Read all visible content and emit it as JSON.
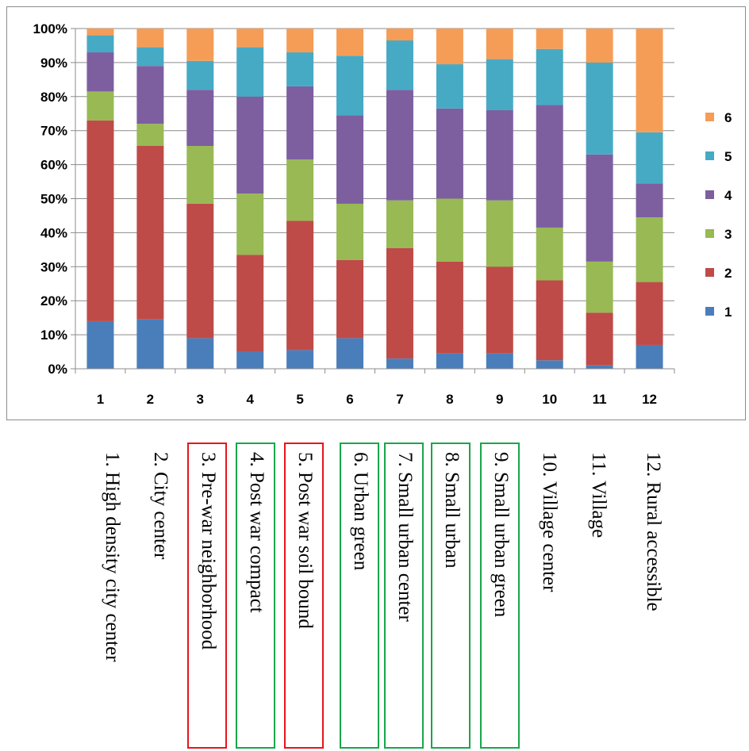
{
  "chart_data": {
    "type": "bar",
    "stacked": true,
    "categories": [
      "1",
      "2",
      "3",
      "4",
      "5",
      "6",
      "7",
      "8",
      "9",
      "10",
      "11",
      "12"
    ],
    "series": [
      {
        "name": "1",
        "color": "#4a7ebb",
        "values": [
          14,
          14.5,
          9,
          5,
          5.5,
          9,
          3,
          4.5,
          4.5,
          2.5,
          1,
          7
        ]
      },
      {
        "name": "2",
        "color": "#be4b48",
        "values": [
          59,
          51,
          39.5,
          28.5,
          38,
          23,
          32.5,
          27,
          25.5,
          23.5,
          15.5,
          18.5
        ]
      },
      {
        "name": "3",
        "color": "#98b954",
        "values": [
          8.5,
          6.5,
          17,
          18,
          18,
          16.5,
          14,
          18.5,
          19.5,
          15.5,
          15,
          19
        ]
      },
      {
        "name": "4",
        "color": "#7d5fa0",
        "values": [
          11.5,
          17,
          16.5,
          28.5,
          21.5,
          26,
          32.5,
          26.5,
          26.5,
          36,
          31.5,
          10
        ]
      },
      {
        "name": "5",
        "color": "#46aac5",
        "values": [
          5,
          5.5,
          8.5,
          14.5,
          10,
          17.5,
          14.5,
          13,
          15,
          16.5,
          27,
          15
        ]
      },
      {
        "name": "6",
        "color": "#f59d56",
        "values": [
          2,
          5.5,
          9.5,
          5.5,
          7,
          8,
          3.5,
          10.5,
          9,
          6,
          10,
          30.5
        ]
      }
    ],
    "yticks": [
      "0%",
      "10%",
      "20%",
      "30%",
      "40%",
      "50%",
      "60%",
      "70%",
      "80%",
      "90%",
      "100%"
    ],
    "ylim": [
      0,
      100
    ],
    "grid": true,
    "legend": "right",
    "legend_order": [
      "6",
      "5",
      "4",
      "3",
      "2",
      "1"
    ]
  },
  "category_labels": [
    {
      "text": "1. High density city center",
      "box": null
    },
    {
      "text": "2. City center",
      "box": null
    },
    {
      "text": "3. Pre-war neighborhood",
      "box": "#e8141b"
    },
    {
      "text": "4. Post war compact",
      "box": "#1aa64a"
    },
    {
      "text": "5. Post war soil bound",
      "box": "#e8141b"
    },
    {
      "text": "6. Urban green",
      "box": "#1aa64a"
    },
    {
      "text": "7. Small urban center",
      "box": "#1aa64a"
    },
    {
      "text": "8. Small urban",
      "box": "#1aa64a"
    },
    {
      "text": "9. Small urban green",
      "box": "#1aa64a"
    },
    {
      "text": "10. Village center",
      "box": null
    },
    {
      "text": "11. Village",
      "box": null
    },
    {
      "text": "12. Rural accessible",
      "box": null
    }
  ]
}
